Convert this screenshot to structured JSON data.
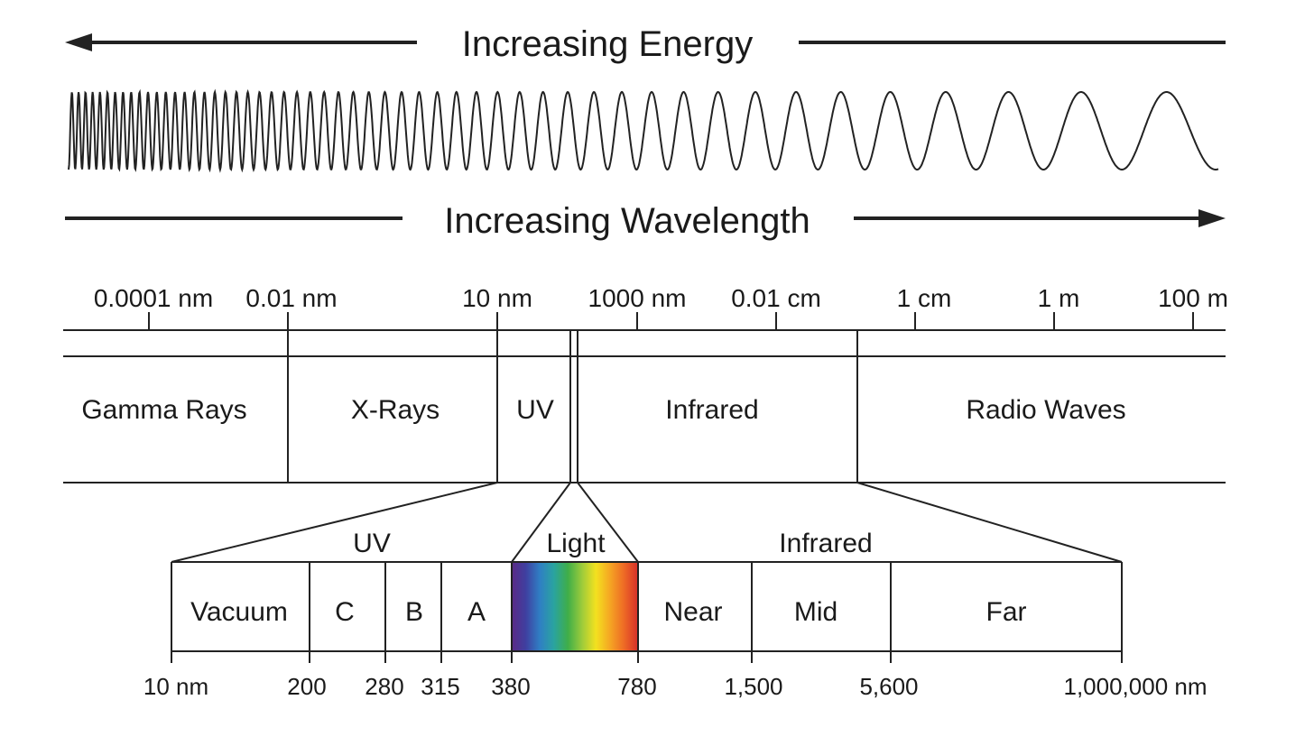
{
  "energy_label": "Increasing Energy",
  "wavelength_label": "Increasing Wavelength",
  "scale_labels": [
    "0.0001 nm",
    "0.01 nm",
    "10 nm",
    "1000 nm",
    "0.01 cm",
    "1 cm",
    "1 m",
    "100 m"
  ],
  "bands": [
    "Gamma Rays",
    "X-Rays",
    "UV",
    "Infrared",
    "Radio Waves"
  ],
  "group_labels": {
    "uv": "UV",
    "light": "Light",
    "infrared": "Infrared"
  },
  "sub_bands": [
    "Vacuum",
    "C",
    "B",
    "A",
    "Near",
    "Mid",
    "Far"
  ],
  "bottom_labels": [
    "10 nm",
    "200",
    "280",
    "315",
    "380",
    "780",
    "1,500",
    "5,600",
    "1,000,000 nm"
  ],
  "spectrum_colors": [
    "#5b2a86",
    "#3f3fa0",
    "#2f7fc4",
    "#2aa3a0",
    "#3fae49",
    "#9ccb3b",
    "#f3e11f",
    "#f5a623",
    "#ee6a25",
    "#d62f2a"
  ]
}
